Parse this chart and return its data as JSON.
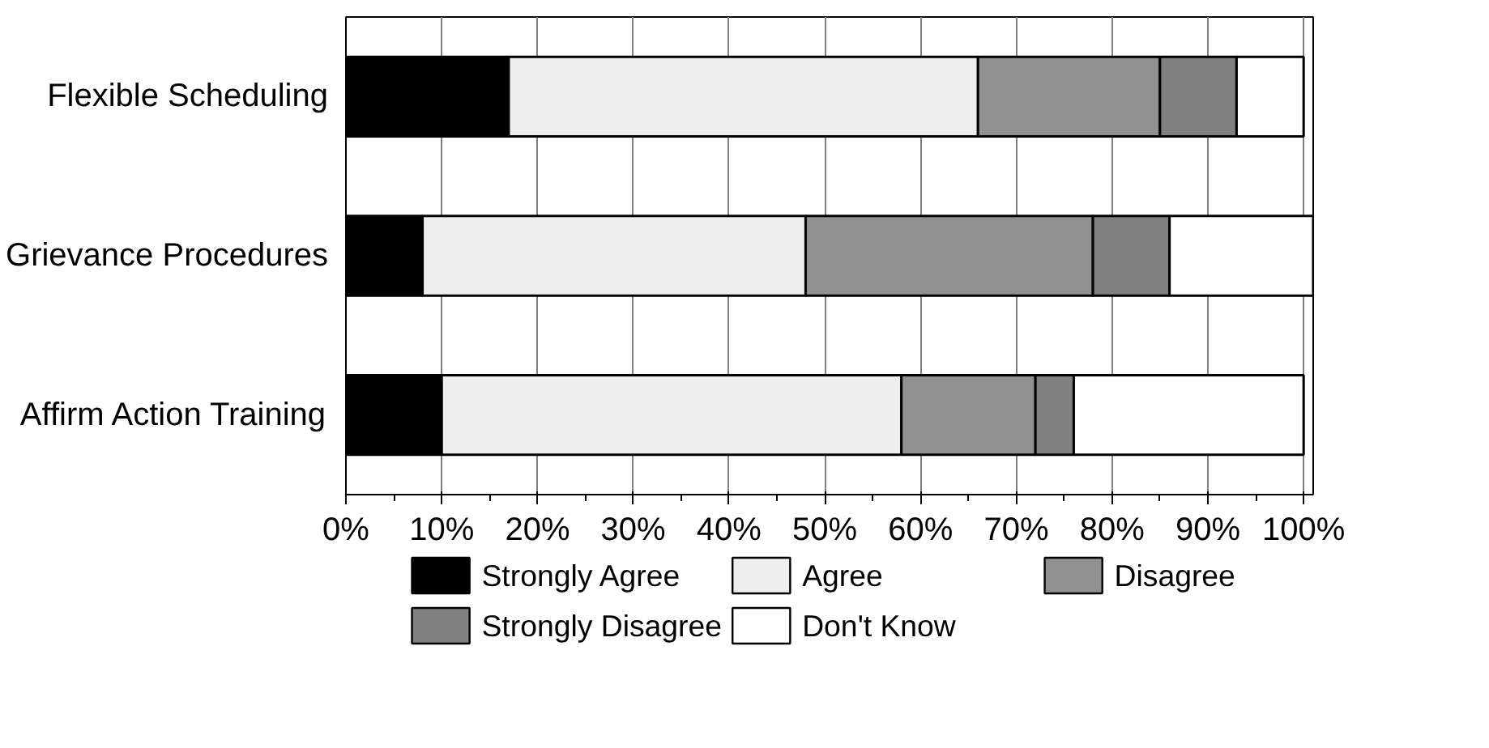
{
  "chart_data": {
    "type": "bar",
    "orientation": "horizontal",
    "stacked": true,
    "categories": [
      "Flexible Scheduling",
      "Grievance Procedures",
      "Affirm Action Training"
    ],
    "series": [
      {
        "name": "Strongly Agree",
        "color": "#000000",
        "values": [
          17,
          8,
          10
        ]
      },
      {
        "name": "Agree",
        "color": "#eeeeee",
        "values": [
          49,
          40,
          48
        ]
      },
      {
        "name": "Disagree",
        "color": "#909090",
        "values": [
          19,
          30,
          14
        ]
      },
      {
        "name": "Strongly Disagree",
        "color": "#808080",
        "values": [
          8,
          8,
          4
        ]
      },
      {
        "name": "Don't Know",
        "color": "#ffffff",
        "values": [
          7,
          15,
          24
        ]
      }
    ],
    "xlim": [
      0,
      101
    ],
    "xticks": [
      {
        "value": 0,
        "label": "0%"
      },
      {
        "value": 10,
        "label": "10%"
      },
      {
        "value": 20,
        "label": "20%"
      },
      {
        "value": 30,
        "label": "30%"
      },
      {
        "value": 40,
        "label": "40%"
      },
      {
        "value": 50,
        "label": "50%"
      },
      {
        "value": 60,
        "label": "60%"
      },
      {
        "value": 70,
        "label": "70%"
      },
      {
        "value": 80,
        "label": "80%"
      },
      {
        "value": 90,
        "label": "90%"
      },
      {
        "value": 100,
        "label": "100%"
      }
    ],
    "grid": "x",
    "legend": "bottom"
  }
}
